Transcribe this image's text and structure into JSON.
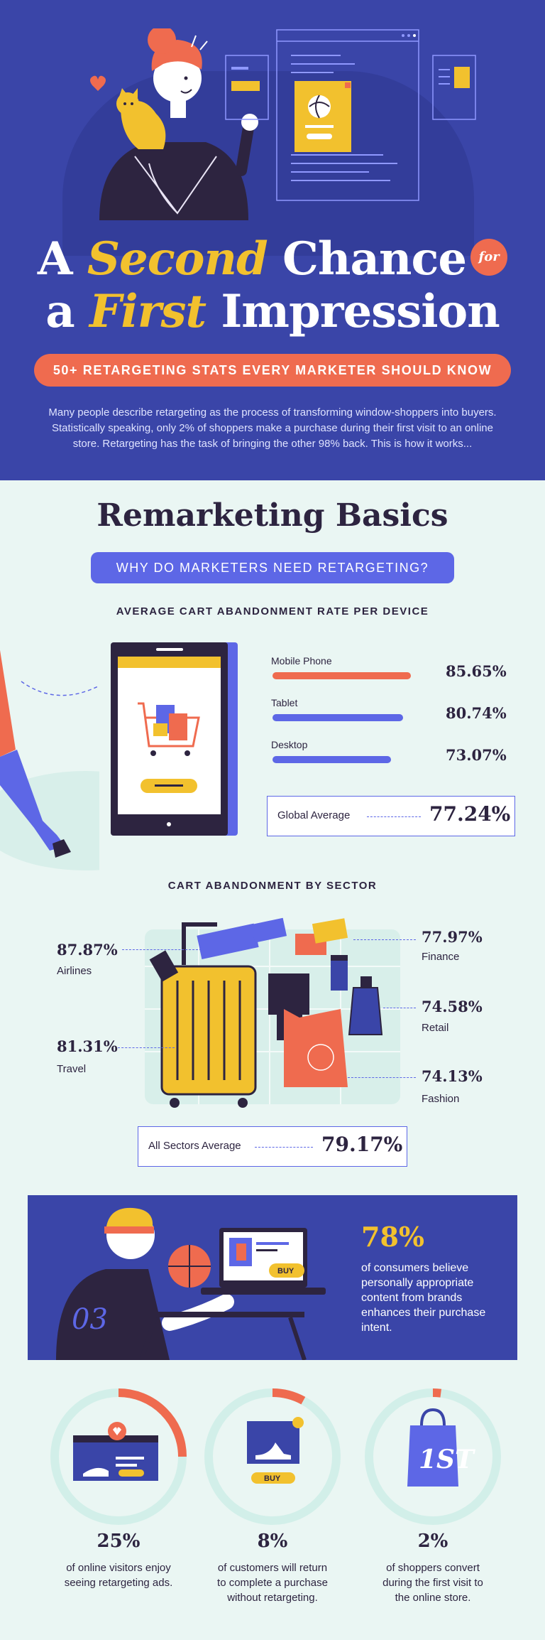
{
  "header": {
    "title_line1_a": "A",
    "title_line1_accent": "Second",
    "title_line1_b": "Chance",
    "title_badge": "for",
    "title_line2_a": "a",
    "title_line2_accent": "First",
    "title_line2_b": "Impression",
    "subtitle": "50+ RETARGETING STATS EVERY MARKETER SHOULD KNOW",
    "intro": "Many people describe retargeting as the process of transforming window-shoppers into buyers. Statistically speaking, only 2% of shoppers make a purchase during their first visit to an online store. Retargeting has the task of bringing the other 98% back. This is how it works..."
  },
  "basics": {
    "title": "Remarketing Basics",
    "question": "WHY DO MARKETERS NEED RETARGETING?",
    "device_heading": "AVERAGE CART ABANDONMENT RATE PER DEVICE",
    "devices": [
      {
        "label": "Mobile Phone",
        "value": "85.65%",
        "fraction": 0.8565,
        "color": "#ef6b4f"
      },
      {
        "label": "Tablet",
        "value": "80.74%",
        "fraction": 0.8074,
        "color": "#5d67e6"
      },
      {
        "label": "Desktop",
        "value": "73.07%",
        "fraction": 0.7307,
        "color": "#5d67e6"
      }
    ],
    "global_label": "Global Average",
    "global_value": "77.24%",
    "sector_heading": "CART ABANDONMENT BY SECTOR",
    "sectors": {
      "airlines": {
        "value": "87.87%",
        "label": "Airlines"
      },
      "travel": {
        "value": "81.31%",
        "label": "Travel"
      },
      "finance": {
        "value": "77.97%",
        "label": "Finance"
      },
      "retail": {
        "value": "74.58%",
        "label": "Retail"
      },
      "fashion": {
        "value": "74.13%",
        "label": "Fashion"
      }
    },
    "sectors_avg_label": "All Sectors Average",
    "sectors_avg_value": "79.17%"
  },
  "panel": {
    "value": "78%",
    "text": "of consumers believe personally appropriate content from brands enhances their purchase intent.",
    "jersey_number": "03",
    "buy_label": "BUY"
  },
  "stats": [
    {
      "value": "25%",
      "text": "of online visitors enjoy seeing retargeting ads.",
      "fraction": 0.25
    },
    {
      "value": "8%",
      "text": "of customers will return to complete a purchase without retargeting.",
      "fraction": 0.08,
      "badge": "BUY"
    },
    {
      "value": "2%",
      "text": "of shoppers convert during the first visit to the online store.",
      "fraction": 0.02,
      "badge": "1ST"
    }
  ],
  "colors": {
    "hero_bg": "#3a45a8",
    "accent_yellow": "#f2c12e",
    "accent_coral": "#ef6b4f",
    "accent_blue": "#5d67e6",
    "light_bg": "#eaf6f3",
    "text_dark": "#2d2440"
  }
}
